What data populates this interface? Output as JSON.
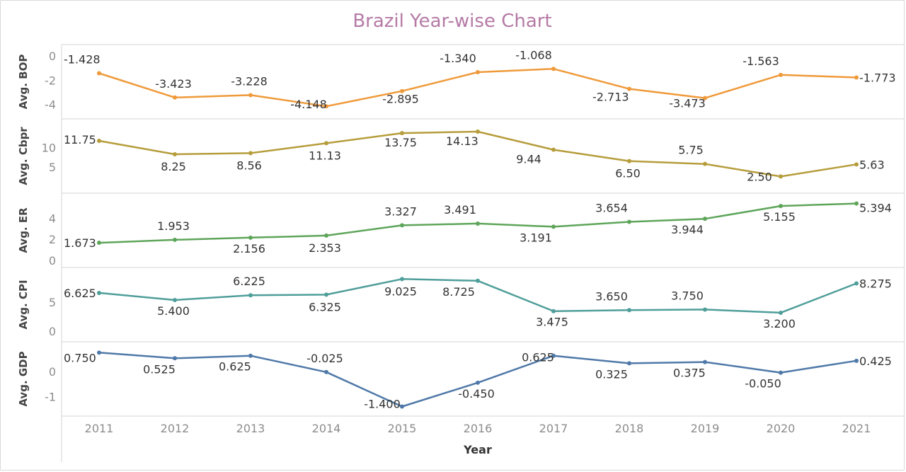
{
  "title": "Brazil Year-wise Chart",
  "chart_data": {
    "type": "line",
    "title": "Brazil Year-wise Chart",
    "xlabel": "Year",
    "categories": [
      "2011",
      "2012",
      "2013",
      "2014",
      "2015",
      "2016",
      "2017",
      "2018",
      "2019",
      "2020",
      "2021"
    ],
    "grid": true,
    "panels": [
      {
        "key": "bop",
        "ylabel": "Avg. BOP",
        "color": "#ef9a3a",
        "ylim": [
          -4.6,
          0.35
        ],
        "ticks": [
          0,
          -2,
          -4
        ],
        "values": [
          -1.428,
          -3.423,
          -3.228,
          -4.148,
          -2.895,
          -1.34,
          -1.068,
          -2.713,
          -3.473,
          -1.563,
          -1.773
        ],
        "labels": [
          "-1.428",
          "-3.423",
          "-3.228",
          "-4.148",
          "-2.895",
          "-1.340",
          "-1.068",
          "-2.713",
          "-3.473",
          "-1.563",
          "-1.773"
        ]
      },
      {
        "key": "cbpr",
        "ylabel": "Avg. Cbpr",
        "color": "#b69d3c",
        "ylim": [
          0,
          15.6
        ],
        "ticks": [
          10,
          5
        ],
        "values": [
          11.75,
          8.25,
          8.56,
          11.13,
          13.75,
          14.13,
          9.44,
          6.5,
          5.75,
          2.5,
          5.63
        ],
        "labels": [
          "11.75",
          "8.25",
          "8.56",
          "11.13",
          "13.75",
          "14.13",
          "9.44",
          "6.50",
          "5.75",
          "2.50",
          "5.63"
        ]
      },
      {
        "key": "er",
        "ylabel": "Avg. ER",
        "color": "#5ea55a",
        "ylim": [
          0,
          5.7
        ],
        "ticks": [
          4,
          2,
          0
        ],
        "values": [
          1.673,
          1.953,
          2.156,
          2.353,
          3.327,
          3.491,
          3.191,
          3.654,
          3.944,
          5.155,
          5.394
        ],
        "labels": [
          "1.673",
          "1.953",
          "2.156",
          "2.353",
          "3.327",
          "3.491",
          "3.191",
          "3.654",
          "3.944",
          "5.155",
          "5.394"
        ]
      },
      {
        "key": "cpi",
        "ylabel": "Avg. CPI",
        "color": "#4f9e9a",
        "ylim": [
          -0.6,
          9.8
        ],
        "ticks": [
          5,
          0
        ],
        "values": [
          6.625,
          5.4,
          6.225,
          6.325,
          9.025,
          8.725,
          3.475,
          3.65,
          3.75,
          3.2,
          8.275
        ],
        "labels": [
          "6.625",
          "5.400",
          "6.225",
          "6.325",
          "9.025",
          "8.725",
          "3.475",
          "3.650",
          "3.750",
          "3.200",
          "8.275"
        ]
      },
      {
        "key": "gdp",
        "ylabel": "Avg. GDP",
        "color": "#4f79a8",
        "ylim": [
          -1.5,
          0.9
        ],
        "ticks": [
          0,
          -1
        ],
        "values": [
          0.75,
          0.525,
          0.625,
          -0.025,
          -1.4,
          -0.45,
          0.625,
          0.325,
          0.375,
          -0.05,
          0.425
        ],
        "labels": [
          "0.750",
          "0.525",
          "0.625",
          "-0.025",
          "-1.400",
          "-0.450",
          "0.625",
          "0.325",
          "0.375",
          "-0.050",
          "0.425"
        ]
      }
    ]
  }
}
